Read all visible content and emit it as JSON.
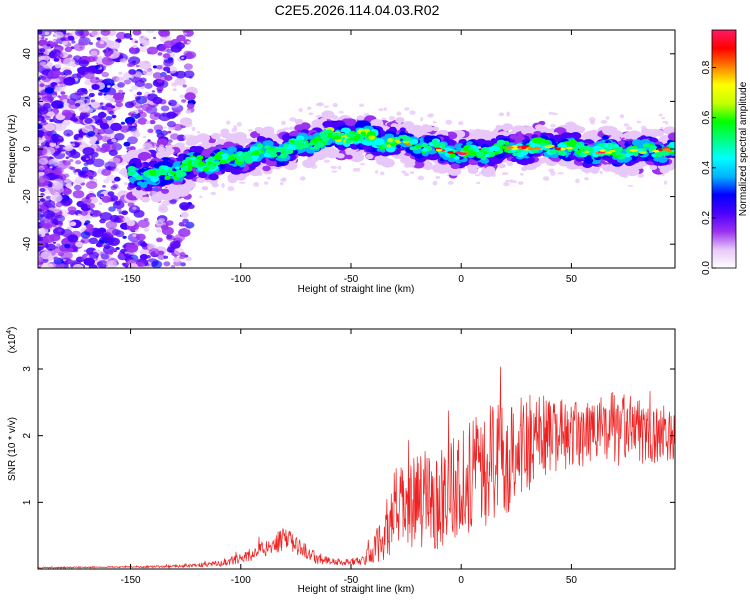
{
  "title": "C2E5.2026.114.04.03.R02",
  "chart_data": [
    {
      "type": "heatmap",
      "xlabel": "Height of straight line (km)",
      "ylabel": "Frequency (Hz)",
      "xlim": [
        -192,
        97
      ],
      "ylim": [
        -50,
        50
      ],
      "xticks": [
        "-150",
        "-100",
        "-50",
        "0",
        "50"
      ],
      "xtick_values": [
        -150,
        -100,
        -50,
        0,
        50
      ],
      "yticks": [
        "-40",
        "-20",
        "0",
        "20",
        "40"
      ],
      "ytick_values": [
        -40,
        -20,
        0,
        20,
        40
      ],
      "ridge_frequency": {
        "x": [
          -192,
          -150,
          -140,
          -120,
          -100,
          -80,
          -60,
          -50,
          -40,
          -20,
          0,
          20,
          40,
          60,
          80,
          97
        ],
        "y": [
          -18,
          -10,
          -12,
          -6,
          -3,
          0,
          5,
          6,
          4,
          2,
          -2,
          0,
          1,
          -1,
          -1,
          0
        ]
      },
      "colorbar": {
        "label": "Normalized spectral amplitude",
        "range": [
          0.0,
          0.95
        ],
        "ticks": [
          "0.0",
          "0.2",
          "0.4",
          "0.6",
          "0.8"
        ],
        "tick_values": [
          0.0,
          0.2,
          0.4,
          0.6,
          0.8
        ],
        "colors": [
          "#ffffff",
          "#e8c8f8",
          "#9a30f0",
          "#4b00ff",
          "#0000ff",
          "#00b4ff",
          "#00ffff",
          "#00ff80",
          "#00ff00",
          "#c8ff00",
          "#ffff00",
          "#ff8000",
          "#ff0000",
          "#ff1a66"
        ]
      }
    },
    {
      "type": "line",
      "xlabel": "Height of straight line (km)",
      "ylabel": "SNR (10 * v/v)",
      "y_multiplier": "(x10",
      "y_multiplier_exp": "4",
      "y_multiplier_close": ")",
      "xlim": [
        -192,
        97
      ],
      "ylim": [
        0,
        3.6
      ],
      "xticks": [
        "-150",
        "-100",
        "-50",
        "0",
        "50"
      ],
      "xtick_values": [
        -150,
        -100,
        -50,
        0,
        50
      ],
      "yticks": [
        "1",
        "2",
        "3"
      ],
      "ytick_values": [
        1,
        2,
        3
      ],
      "color": "#ee2222",
      "envelope": {
        "x": [
          -192,
          -150,
          -130,
          -110,
          -100,
          -90,
          -80,
          -72,
          -65,
          -55,
          -45,
          -40,
          -35,
          -30,
          -20,
          -10,
          0,
          10,
          20,
          30,
          40,
          50,
          60,
          70,
          80,
          90,
          97
        ],
        "mean": [
          0.02,
          0.03,
          0.04,
          0.08,
          0.15,
          0.3,
          0.45,
          0.3,
          0.15,
          0.1,
          0.12,
          0.25,
          0.5,
          0.9,
          1.0,
          1.1,
          1.3,
          1.5,
          1.7,
          1.9,
          2.0,
          2.0,
          2.05,
          2.1,
          2.05,
          2.0,
          2.05
        ],
        "amplitude": [
          0.01,
          0.01,
          0.02,
          0.04,
          0.08,
          0.12,
          0.18,
          0.12,
          0.08,
          0.05,
          0.06,
          0.2,
          0.4,
          0.6,
          0.7,
          0.8,
          0.8,
          0.9,
          0.9,
          0.8,
          0.6,
          0.5,
          0.5,
          0.6,
          0.5,
          0.4,
          0.4
        ]
      }
    }
  ]
}
